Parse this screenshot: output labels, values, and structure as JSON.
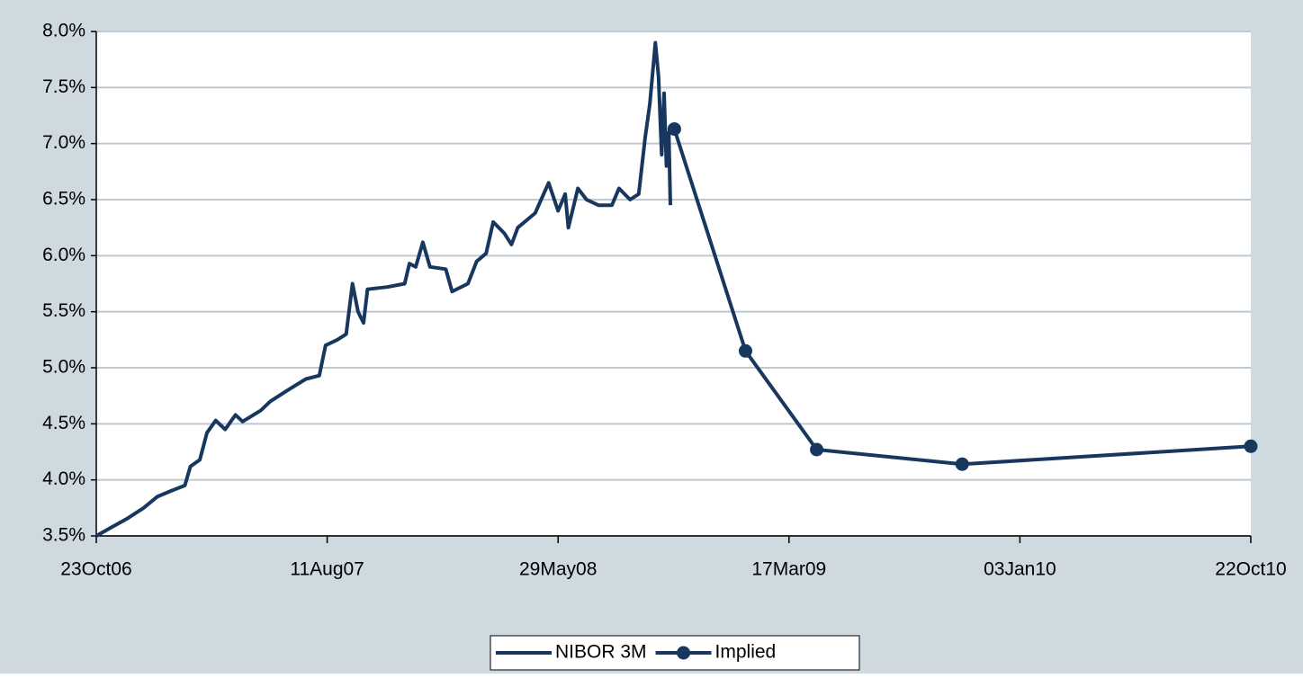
{
  "chart_data": {
    "type": "line",
    "series": [
      {
        "name": "NIBOR 3M",
        "color": "#17375e",
        "marker": false,
        "x": [
          "2006-10-23",
          "2006-11-12",
          "2006-11-30",
          "2006-12-22",
          "2007-01-08",
          "2007-01-25",
          "2007-02-12",
          "2007-02-19",
          "2007-03-03",
          "2007-03-12",
          "2007-03-23",
          "2007-04-04",
          "2007-04-17",
          "2007-04-26",
          "2007-05-19",
          "2007-05-31",
          "2007-06-22",
          "2007-07-15",
          "2007-08-01",
          "2007-08-09",
          "2007-08-24",
          "2007-09-04",
          "2007-09-12",
          "2007-09-19",
          "2007-09-26",
          "2007-10-01",
          "2007-10-26",
          "2007-11-17",
          "2007-11-23",
          "2007-12-01",
          "2007-12-10",
          "2007-12-19",
          "2008-01-08",
          "2008-01-16",
          "2008-02-05",
          "2008-02-16",
          "2008-02-28",
          "2008-03-08",
          "2008-03-22",
          "2008-03-31",
          "2008-04-08",
          "2008-04-30",
          "2008-05-17",
          "2008-05-29",
          "2008-06-07",
          "2008-06-11",
          "2008-06-23",
          "2008-07-04",
          "2008-07-19",
          "2008-08-05",
          "2008-08-14",
          "2008-08-28",
          "2008-09-08",
          "2008-09-16",
          "2008-09-22",
          "2008-09-29",
          "2008-10-03",
          "2008-10-07",
          "2008-10-10",
          "2008-10-13",
          "2008-10-16",
          "2008-10-18"
        ],
        "values": [
          3.5,
          3.58,
          3.65,
          3.75,
          3.85,
          3.9,
          3.95,
          4.12,
          4.18,
          4.42,
          4.53,
          4.45,
          4.58,
          4.52,
          4.62,
          4.7,
          4.8,
          4.9,
          4.93,
          5.2,
          5.25,
          5.3,
          5.75,
          5.5,
          5.4,
          5.7,
          5.72,
          5.75,
          5.93,
          5.9,
          6.12,
          5.9,
          5.88,
          5.68,
          5.75,
          5.95,
          6.02,
          6.3,
          6.2,
          6.1,
          6.25,
          6.38,
          6.65,
          6.4,
          6.55,
          6.25,
          6.6,
          6.5,
          6.45,
          6.45,
          6.6,
          6.5,
          6.55,
          7.05,
          7.35,
          7.9,
          7.6,
          6.9,
          7.45,
          6.8,
          7.1,
          6.45
        ]
      },
      {
        "name": "Implied",
        "color": "#17375e",
        "marker": true,
        "x": [
          "2008-10-23",
          "2009-01-21",
          "2009-04-21",
          "2009-10-22",
          "2010-10-22"
        ],
        "values": [
          7.13,
          5.15,
          4.27,
          4.14,
          4.3
        ]
      }
    ],
    "xlim": [
      "2006-10-23",
      "2010-10-22"
    ],
    "xticks": [
      {
        "value": "2006-10-23",
        "label": "23Oct06"
      },
      {
        "value": "2007-08-11",
        "label": "11Aug07"
      },
      {
        "value": "2008-05-29",
        "label": "29May08"
      },
      {
        "value": "2009-03-17",
        "label": "17Mar09"
      },
      {
        "value": "2010-01-03",
        "label": "03Jan10"
      },
      {
        "value": "2010-10-22",
        "label": "22Oct10"
      }
    ],
    "ylim": [
      3.5,
      8.0
    ],
    "yticks": [
      {
        "value": 3.5,
        "label": "3.5%"
      },
      {
        "value": 4.0,
        "label": "4.0%"
      },
      {
        "value": 4.5,
        "label": "4.5%"
      },
      {
        "value": 5.0,
        "label": "5.0%"
      },
      {
        "value": 5.5,
        "label": "5.5%"
      },
      {
        "value": 6.0,
        "label": "6.0%"
      },
      {
        "value": 6.5,
        "label": "6.5%"
      },
      {
        "value": 7.0,
        "label": "7.0%"
      },
      {
        "value": 7.5,
        "label": "7.5%"
      },
      {
        "value": 8.0,
        "label": "8.0%"
      }
    ],
    "grid": true,
    "legend": "bottom"
  }
}
